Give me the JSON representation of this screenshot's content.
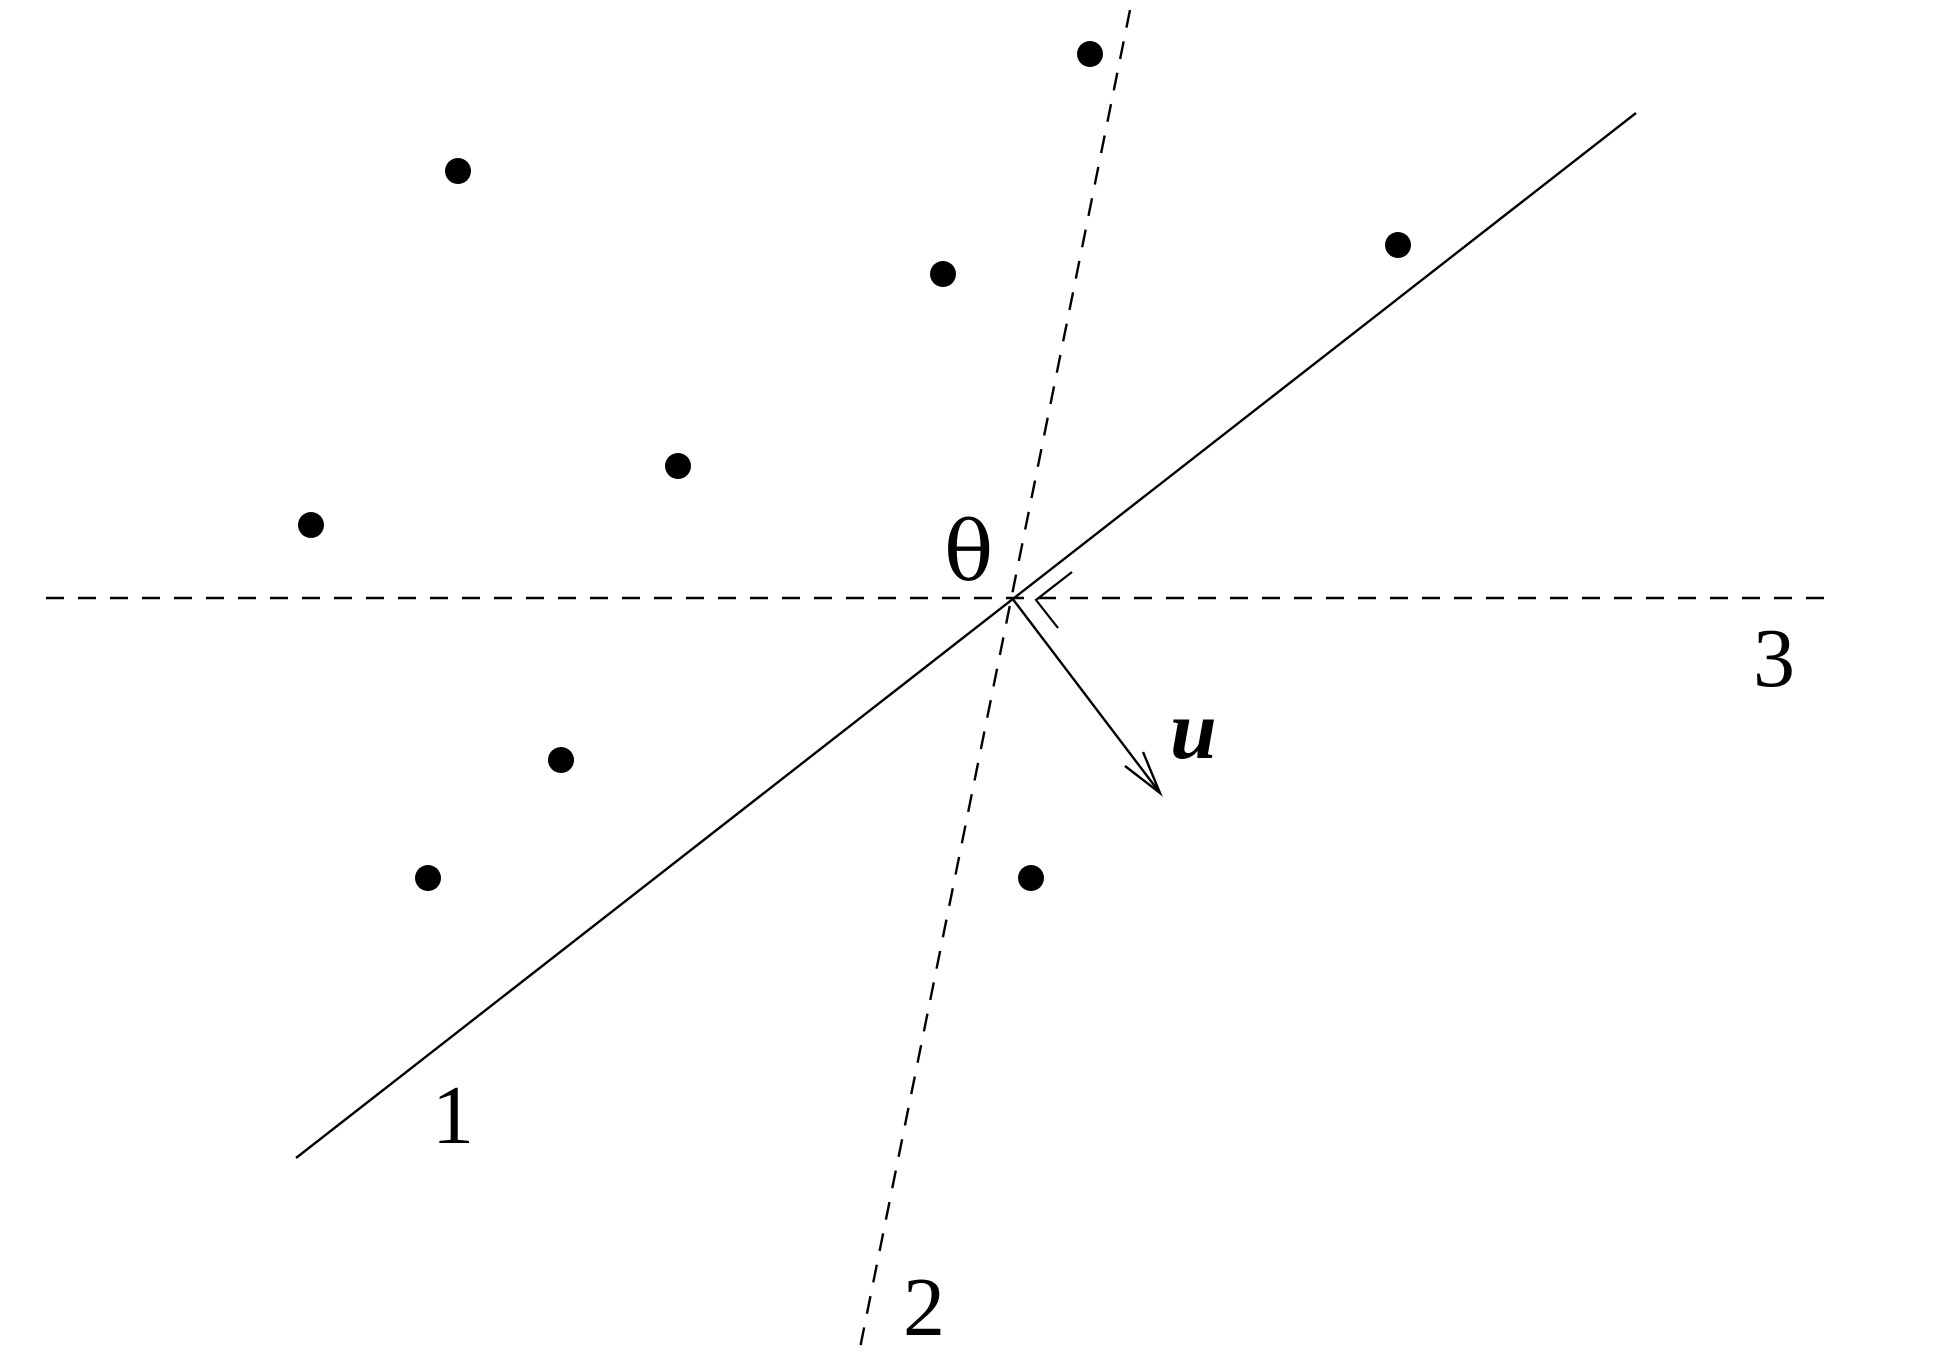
{
  "labels": {
    "line1": "1",
    "line2": "2",
    "line3": "3",
    "vector": "u",
    "angle": "θ"
  },
  "colors": {
    "ink": "#000000",
    "background": "#ffffff"
  }
}
